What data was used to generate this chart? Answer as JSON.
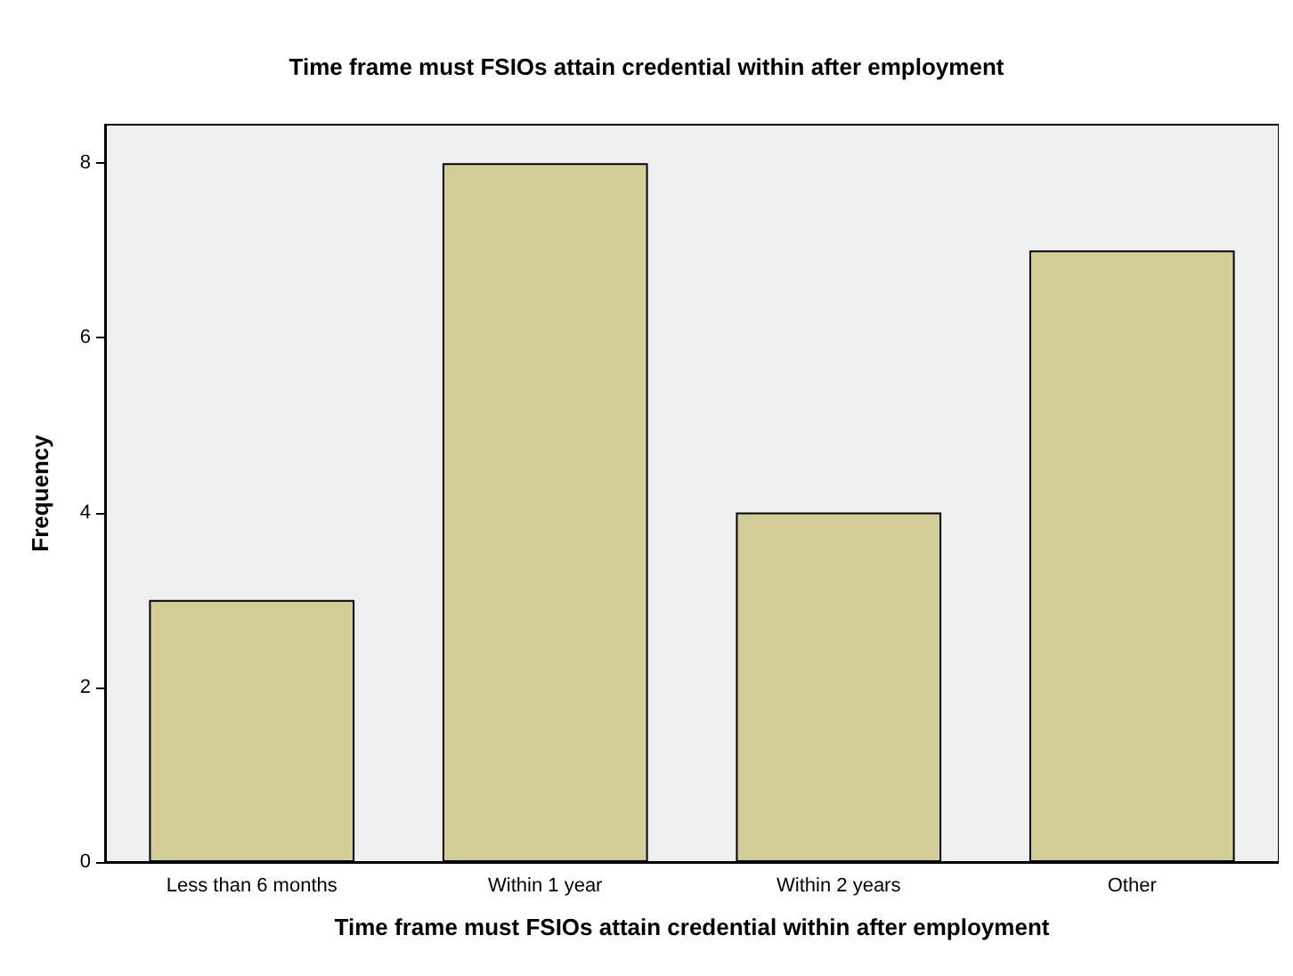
{
  "chart_data": {
    "type": "bar",
    "title": "Time frame must FSIOs attain credential within after employment",
    "xlabel": "Time frame must FSIOs attain credential within after employment",
    "ylabel": "Frequency",
    "categories": [
      "Less than 6 months",
      "Within 1 year",
      "Within 2 years",
      "Other"
    ],
    "values": [
      3,
      8,
      4,
      7
    ],
    "color": "#d3ce97",
    "ylim": [
      0,
      8.44
    ],
    "yticks": [
      0,
      2,
      4,
      6,
      8
    ],
    "grid": false
  }
}
